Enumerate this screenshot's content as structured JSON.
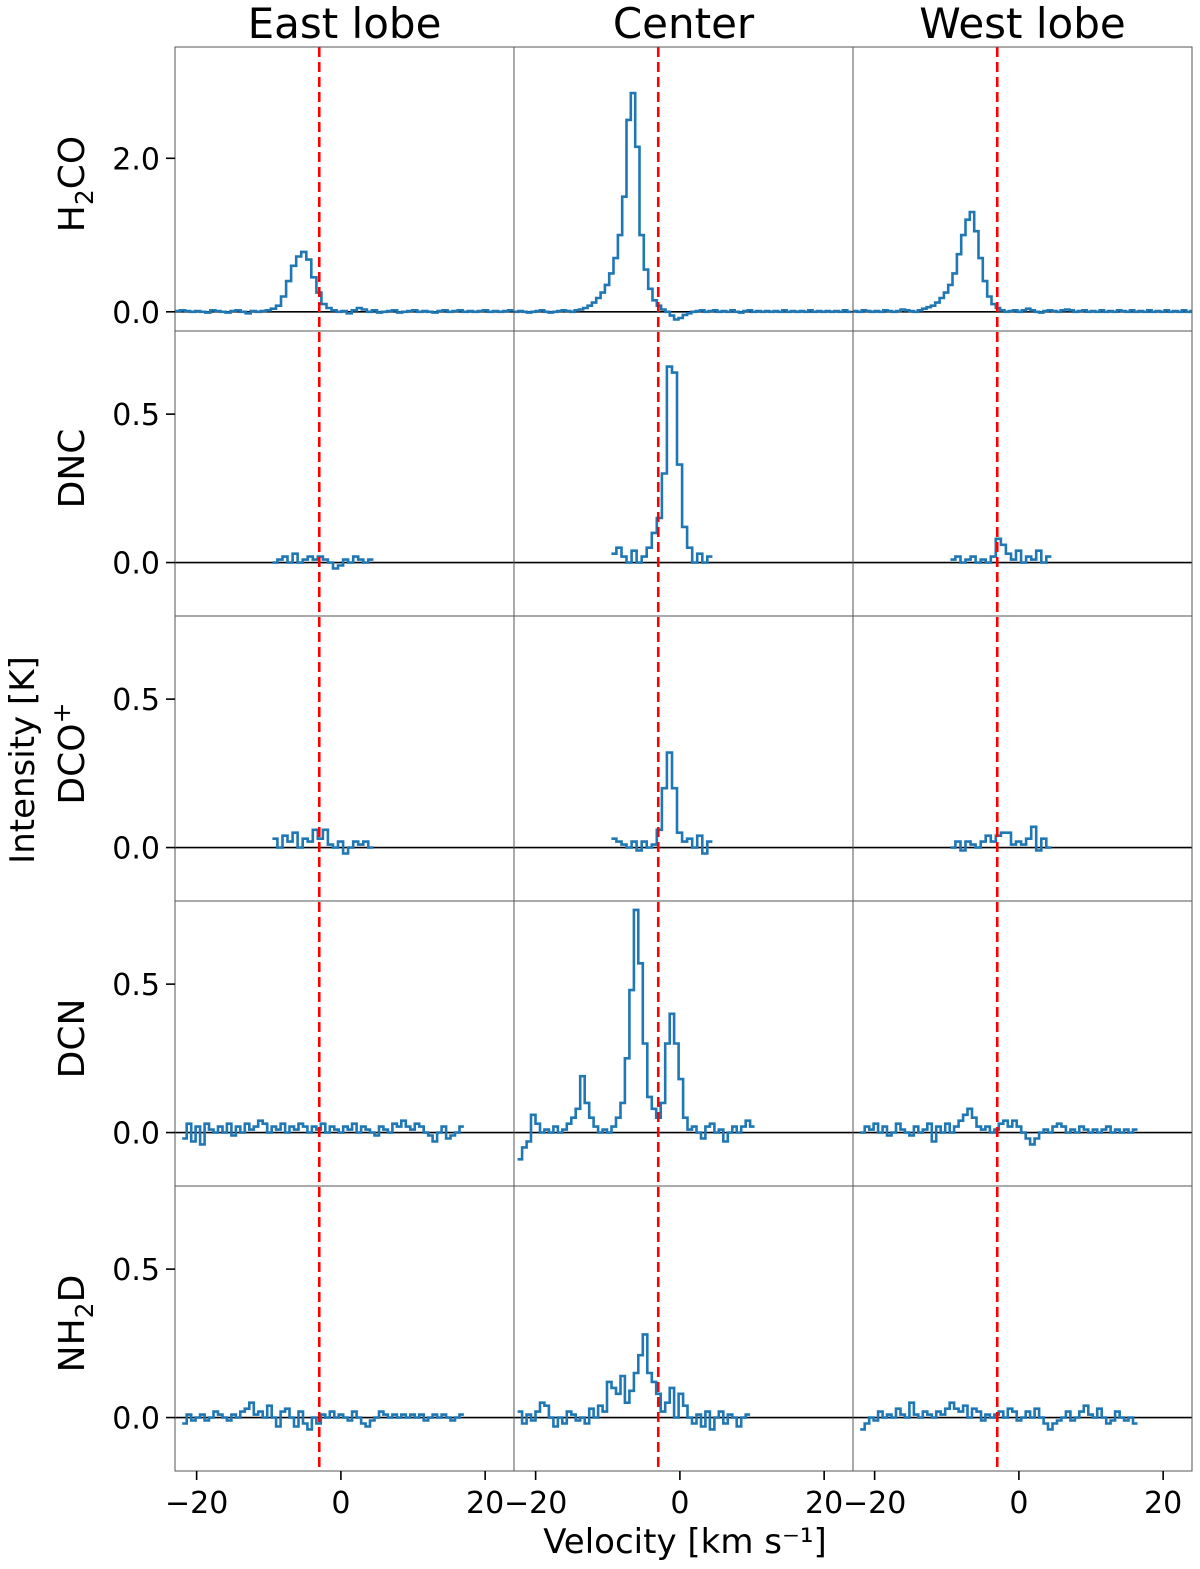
{
  "chart_data": {
    "type": "line",
    "xlabel": "Velocity [km s⁻¹]",
    "ylabel": "Intensity [K]",
    "xlim": [
      -23,
      24
    ],
    "xticks": [
      -20,
      0,
      20
    ],
    "xtick_labels": [
      "−20",
      "0",
      "20"
    ],
    "columns": [
      "East lobe",
      "Center",
      "West lobe"
    ],
    "reference_velocity": -3.0,
    "colors": {
      "spectrum": "#1f77b4",
      "reference_line": "#ff0000",
      "baseline": "#000000"
    },
    "rows": [
      {
        "molecule": "H2CO",
        "label_main": "H",
        "label_sub": "2",
        "label_rest": "CO",
        "label_sup": "",
        "ylim": [
          -0.25,
          3.45
        ],
        "yticks": [
          0.0,
          2.0
        ],
        "ytick_labels": [
          "0.0",
          "2.0"
        ]
      },
      {
        "molecule": "DNC",
        "label_main": "DNC",
        "label_sub": "",
        "label_rest": "",
        "label_sup": "",
        "ylim": [
          -0.18,
          0.78
        ],
        "yticks": [
          0.0,
          0.5
        ],
        "ytick_labels": [
          "0.0",
          "0.5"
        ]
      },
      {
        "molecule": "DCO+",
        "label_main": "DCO",
        "label_sub": "",
        "label_rest": "",
        "label_sup": "+",
        "ylim": [
          -0.18,
          0.78
        ],
        "yticks": [
          0.0,
          0.5
        ],
        "ytick_labels": [
          "0.0",
          "0.5"
        ]
      },
      {
        "molecule": "DCN",
        "label_main": "DCN",
        "label_sub": "",
        "label_rest": "",
        "label_sup": "",
        "ylim": [
          -0.18,
          0.78
        ],
        "yticks": [
          0.0,
          0.5
        ],
        "ytick_labels": [
          "0.0",
          "0.5"
        ]
      },
      {
        "molecule": "NH2D",
        "label_main": "NH",
        "label_sub": "2",
        "label_rest": "D",
        "label_sup": "",
        "ylim": [
          -0.18,
          0.78
        ],
        "yticks": [
          0.0,
          0.5
        ],
        "ytick_labels": [
          "0.0",
          "0.5"
        ]
      }
    ],
    "series": [
      {
        "row": 0,
        "col": 0,
        "v_start": -23,
        "dv": 0.7,
        "values": [
          0.01,
          0.02,
          0.01,
          0.0,
          0.01,
          0.0,
          -0.01,
          0.02,
          0.01,
          0.0,
          -0.01,
          0.01,
          0.02,
          0.0,
          -0.02,
          0.01,
          0.0,
          0.01,
          0.02,
          0.04,
          0.08,
          0.2,
          0.4,
          0.6,
          0.72,
          0.78,
          0.68,
          0.45,
          0.25,
          0.1,
          0.05,
          0.02,
          0.0,
          0.01,
          -0.02,
          0.02,
          0.05,
          0.03,
          0.0,
          0.02,
          -0.01,
          0.0,
          0.01,
          0.02,
          -0.01,
          0.0,
          0.01,
          0.02,
          0.0,
          0.01,
          0.0,
          -0.01,
          0.01,
          0.02,
          0.0,
          0.01,
          0.02,
          0.0,
          0.01,
          0.0,
          0.01,
          0.02,
          0.0,
          0.01,
          0.0,
          0.01,
          0.02
        ]
      },
      {
        "row": 0,
        "col": 1,
        "v_start": -23,
        "dv": 0.6,
        "values": [
          0.0,
          0.01,
          0.0,
          -0.01,
          0.0,
          0.01,
          0.02,
          0.0,
          -0.01,
          0.0,
          0.01,
          0.02,
          0.01,
          0.0,
          0.02,
          0.03,
          0.05,
          0.08,
          0.12,
          0.18,
          0.25,
          0.35,
          0.5,
          0.7,
          1.0,
          1.5,
          2.5,
          2.85,
          2.15,
          1.0,
          0.55,
          0.3,
          0.15,
          0.08,
          0.03,
          0.0,
          -0.05,
          -0.1,
          -0.08,
          -0.04,
          -0.02,
          0.0,
          0.01,
          0.02,
          0.0,
          0.01,
          0.02,
          0.0,
          0.01,
          0.0,
          0.02,
          0.0,
          -0.01,
          0.01,
          0.02,
          0.0,
          0.01,
          0.0,
          0.01,
          0.0,
          0.01,
          0.0,
          0.02,
          0.0,
          0.01,
          0.0,
          0.01,
          0.0,
          0.02,
          0.0,
          0.01,
          0.0,
          0.01,
          0.0,
          0.01,
          0.0,
          0.02,
          0.0
        ]
      },
      {
        "row": 0,
        "col": 2,
        "v_start": -23,
        "dv": 0.6,
        "values": [
          0.01,
          0.0,
          0.02,
          0.01,
          0.0,
          0.01,
          0.0,
          0.02,
          0.01,
          0.0,
          0.01,
          0.03,
          0.02,
          0.01,
          0.0,
          0.02,
          0.04,
          0.06,
          0.08,
          0.12,
          0.18,
          0.25,
          0.35,
          0.5,
          0.75,
          1.0,
          1.2,
          1.3,
          1.05,
          0.7,
          0.4,
          0.2,
          0.1,
          0.05,
          0.02,
          0.0,
          0.01,
          0.02,
          0.0,
          0.02,
          0.04,
          0.02,
          0.0,
          -0.01,
          0.01,
          0.02,
          0.01,
          0.0,
          0.02,
          0.03,
          0.02,
          0.0,
          0.01,
          0.02,
          0.0,
          0.01,
          0.0,
          0.02,
          0.0,
          0.01,
          0.0,
          0.02,
          0.01,
          0.0,
          0.02,
          0.0,
          0.01,
          0.0,
          0.02,
          0.0,
          0.01,
          0.0,
          0.02,
          0.0,
          0.01,
          0.0,
          0.02,
          0.0,
          0.01
        ]
      },
      {
        "row": 1,
        "col": 0,
        "v_start": -9.5,
        "dv": 0.7,
        "values": [
          0.0,
          0.01,
          0.02,
          0.0,
          0.03,
          0.0,
          0.01,
          0.02,
          0.01,
          0.02,
          0.01,
          0.0,
          -0.02,
          -0.01,
          0.01,
          0.0,
          0.02,
          0.01,
          0.0,
          0.01
        ]
      },
      {
        "row": 1,
        "col": 1,
        "v_start": -9.5,
        "dv": 0.7,
        "values": [
          0.03,
          0.05,
          0.02,
          0.0,
          0.04,
          0.0,
          0.02,
          0.05,
          0.1,
          0.15,
          0.3,
          0.66,
          0.64,
          0.33,
          0.12,
          0.05,
          0.0,
          0.03,
          0.0,
          0.02
        ]
      },
      {
        "row": 1,
        "col": 2,
        "v_start": -9.5,
        "dv": 0.7,
        "values": [
          0.01,
          0.02,
          0.0,
          0.01,
          0.02,
          0.0,
          0.01,
          0.0,
          0.02,
          0.08,
          0.06,
          0.03,
          0.01,
          0.04,
          0.0,
          0.02,
          0.01,
          0.04,
          0.0,
          0.02
        ]
      },
      {
        "row": 2,
        "col": 0,
        "v_start": -9.5,
        "dv": 0.7,
        "values": [
          0.03,
          0.0,
          0.04,
          0.02,
          0.05,
          0.0,
          0.03,
          0.02,
          0.06,
          0.03,
          0.06,
          0.01,
          0.0,
          0.02,
          -0.02,
          0.0,
          0.02,
          0.01,
          0.02,
          0.0
        ]
      },
      {
        "row": 2,
        "col": 1,
        "v_start": -9.5,
        "dv": 0.7,
        "values": [
          0.03,
          0.02,
          0.01,
          0.0,
          0.02,
          -0.01,
          0.02,
          0.0,
          0.01,
          0.06,
          0.2,
          0.32,
          0.2,
          0.05,
          0.02,
          0.03,
          0.0,
          0.04,
          -0.02,
          0.02
        ]
      },
      {
        "row": 2,
        "col": 2,
        "v_start": -9.5,
        "dv": 0.7,
        "values": [
          0.0,
          0.02,
          -0.01,
          0.02,
          0.01,
          0.0,
          0.02,
          0.04,
          0.02,
          0.04,
          0.05,
          0.05,
          0.01,
          0.02,
          0.01,
          0.03,
          0.07,
          -0.01,
          0.03,
          0.0
        ]
      },
      {
        "row": 3,
        "col": 0,
        "v_start": -22,
        "dv": 0.62,
        "values": [
          -0.02,
          0.03,
          -0.03,
          0.02,
          -0.04,
          0.03,
          0.01,
          0.0,
          0.02,
          0.0,
          0.03,
          -0.01,
          0.02,
          0.0,
          0.03,
          0.01,
          0.02,
          0.04,
          0.03,
          0.0,
          0.02,
          0.01,
          0.03,
          0.0,
          0.02,
          0.01,
          0.03,
          0.02,
          0.0,
          0.02,
          0.01,
          0.03,
          0.0,
          0.02,
          0.01,
          0.0,
          0.02,
          0.01,
          0.03,
          0.0,
          0.02,
          0.01,
          0.0,
          -0.01,
          0.02,
          0.01,
          0.0,
          0.03,
          0.02,
          0.04,
          0.02,
          0.01,
          0.03,
          0.02,
          0.0,
          -0.01,
          -0.03,
          0.0,
          0.02,
          -0.02,
          -0.01,
          0.0,
          0.02
        ]
      },
      {
        "row": 3,
        "col": 1,
        "v_start": -22.5,
        "dv": 0.62,
        "values": [
          -0.09,
          -0.05,
          -0.03,
          0.06,
          0.03,
          0.0,
          0.01,
          0.0,
          0.02,
          0.0,
          0.01,
          0.03,
          0.05,
          0.08,
          0.19,
          0.1,
          0.05,
          0.02,
          0.0,
          0.01,
          0.0,
          0.02,
          0.05,
          0.1,
          0.25,
          0.48,
          0.75,
          0.57,
          0.3,
          0.12,
          0.08,
          0.05,
          0.1,
          0.3,
          0.4,
          0.3,
          0.18,
          0.05,
          0.01,
          0.02,
          0.0,
          -0.02,
          0.02,
          0.03,
          0.0,
          0.01,
          -0.03,
          0.0,
          0.02,
          0.0,
          0.02,
          0.04,
          0.02
        ]
      },
      {
        "row": 3,
        "col": 2,
        "v_start": -22,
        "dv": 0.62,
        "values": [
          0.0,
          0.02,
          0.01,
          0.03,
          0.0,
          0.02,
          -0.01,
          0.0,
          0.03,
          0.01,
          0.0,
          -0.01,
          0.02,
          0.0,
          0.01,
          0.03,
          -0.03,
          0.02,
          0.0,
          0.03,
          0.0,
          0.02,
          0.04,
          0.06,
          0.08,
          0.05,
          0.02,
          0.01,
          0.02,
          0.0,
          0.01,
          0.03,
          0.04,
          0.02,
          0.04,
          0.02,
          0.0,
          -0.02,
          -0.04,
          -0.02,
          0.0,
          0.01,
          0.0,
          0.02,
          0.03,
          0.02,
          0.0,
          0.01,
          0.0,
          0.02,
          0.01,
          0.0,
          0.01,
          0.0,
          0.01,
          0.02,
          0.0,
          0.01,
          0.0,
          0.01,
          0.0,
          0.01
        ]
      },
      {
        "row": 4,
        "col": 0,
        "v_start": -22,
        "dv": 0.62,
        "values": [
          -0.02,
          0.01,
          -0.01,
          0.0,
          0.01,
          -0.01,
          0.0,
          0.02,
          0.01,
          0.0,
          -0.01,
          0.01,
          0.0,
          0.02,
          0.03,
          0.05,
          0.01,
          0.02,
          0.0,
          0.04,
          0.0,
          -0.03,
          0.02,
          0.03,
          0.0,
          -0.03,
          0.02,
          -0.02,
          -0.04,
          0.0,
          -0.02,
          0.01,
          0.0,
          0.02,
          0.0,
          0.01,
          0.0,
          -0.01,
          0.02,
          0.0,
          -0.02,
          -0.03,
          -0.01,
          0.0,
          0.02,
          0.01,
          0.0,
          0.01,
          0.0,
          0.01,
          0.0,
          0.01,
          0.0,
          0.01,
          -0.01,
          0.0,
          0.01,
          0.0,
          0.01,
          0.0,
          -0.01,
          0.0,
          0.01
        ]
      },
      {
        "row": 4,
        "col": 1,
        "v_start": -22.5,
        "dv": 0.62,
        "values": [
          0.02,
          -0.02,
          0.01,
          -0.01,
          0.02,
          0.05,
          0.04,
          0.0,
          -0.03,
          0.0,
          -0.02,
          0.02,
          0.01,
          -0.01,
          0.0,
          -0.02,
          0.03,
          0.0,
          0.04,
          0.02,
          0.12,
          0.1,
          0.08,
          0.14,
          0.05,
          0.09,
          0.15,
          0.21,
          0.28,
          0.15,
          0.12,
          0.08,
          0.02,
          0.05,
          0.1,
          0.0,
          0.08,
          0.04,
          0.0,
          -0.02,
          0.01,
          -0.03,
          0.02,
          -0.04,
          0.0,
          0.02,
          -0.02,
          0.01,
          0.0,
          -0.03,
          0.0,
          0.01
        ]
      },
      {
        "row": 4,
        "col": 2,
        "v_start": -22,
        "dv": 0.62,
        "values": [
          -0.04,
          -0.02,
          0.0,
          -0.01,
          0.02,
          0.0,
          0.01,
          0.0,
          0.03,
          0.01,
          0.0,
          0.05,
          0.01,
          0.0,
          0.02,
          0.01,
          0.0,
          0.02,
          0.01,
          0.03,
          0.05,
          0.03,
          0.02,
          0.04,
          0.0,
          0.03,
          0.02,
          -0.01,
          0.01,
          0.0,
          0.01,
          0.02,
          0.0,
          0.03,
          0.02,
          -0.01,
          0.0,
          0.02,
          0.0,
          0.03,
          0.0,
          -0.02,
          -0.04,
          -0.02,
          -0.01,
          0.0,
          0.02,
          -0.01,
          0.0,
          0.02,
          0.04,
          0.01,
          0.0,
          0.03,
          0.0,
          -0.02,
          -0.01,
          0.02,
          0.0,
          -0.01,
          0.0,
          -0.02
        ]
      }
    ]
  }
}
